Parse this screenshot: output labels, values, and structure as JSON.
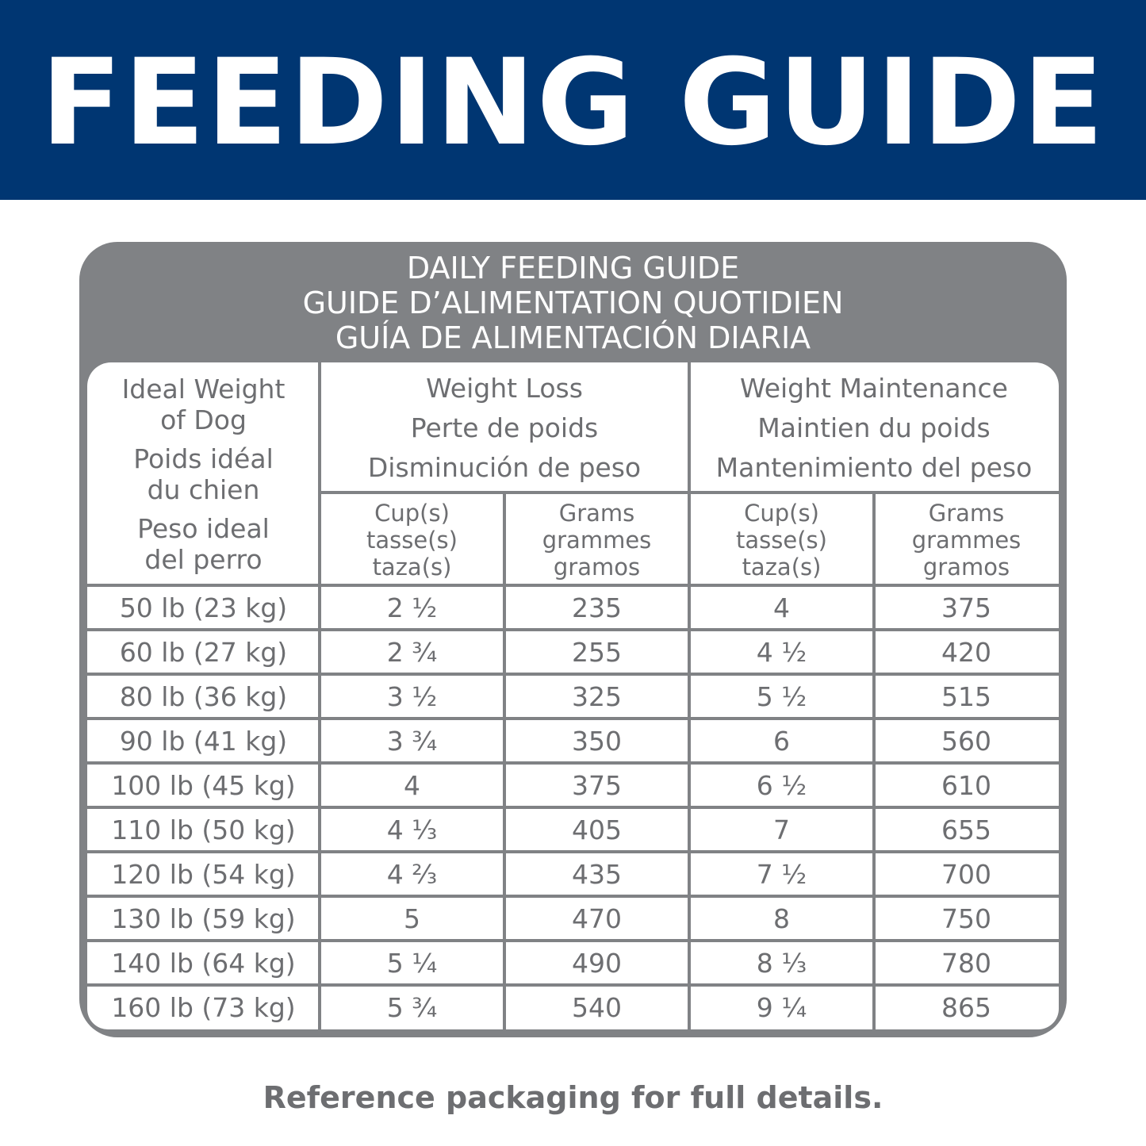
{
  "header": {
    "title": "FEEDING GUIDE"
  },
  "table": {
    "caption": [
      "DAILY FEEDING GUIDE",
      "GUIDE D’ALIMENTATION QUOTIDIEN",
      "GUÍA DE ALIMENTACIÓN DIARIA"
    ],
    "weight_header": [
      "Ideal Weight of Dog",
      "Poids idéal du chien",
      "Peso ideal del perro"
    ],
    "groups": [
      [
        "Weight Loss",
        "Perte de poids",
        "Disminución de peso"
      ],
      [
        "Weight Maintenance",
        "Maintien du poids",
        "Mantenimiento del peso"
      ]
    ],
    "subheaders": [
      [
        "Cup(s)",
        "tasse(s)",
        "taza(s)"
      ],
      [
        "Grams",
        "grammes",
        "gramos"
      ],
      [
        "Cup(s)",
        "tasse(s)",
        "taza(s)"
      ],
      [
        "Grams",
        "grammes",
        "gramos"
      ]
    ],
    "rows": [
      [
        "50 lb (23 kg)",
        "2 ½",
        "235",
        "4",
        "375"
      ],
      [
        "60 lb (27 kg)",
        "2 ¾",
        "255",
        "4 ½",
        "420"
      ],
      [
        "80 lb (36 kg)",
        "3 ½",
        "325",
        "5 ½",
        "515"
      ],
      [
        "90 lb (41 kg)",
        "3 ¾",
        "350",
        "6",
        "560"
      ],
      [
        "100 lb (45 kg)",
        "4",
        "375",
        "6 ½",
        "610"
      ],
      [
        "110 lb (50 kg)",
        "4 ⅓",
        "405",
        "7",
        "655"
      ],
      [
        "120 lb (54 kg)",
        "4 ⅔",
        "435",
        "7 ½",
        "700"
      ],
      [
        "130 lb (59 kg)",
        "5",
        "470",
        "8",
        "750"
      ],
      [
        "140 lb (64 kg)",
        "5 ¼",
        "490",
        "8 ⅓",
        "780"
      ],
      [
        "160 lb (73 kg)",
        "5 ¾",
        "540",
        "9 ¼",
        "865"
      ]
    ]
  },
  "footer": {
    "note": "Reference packaging for full details."
  }
}
